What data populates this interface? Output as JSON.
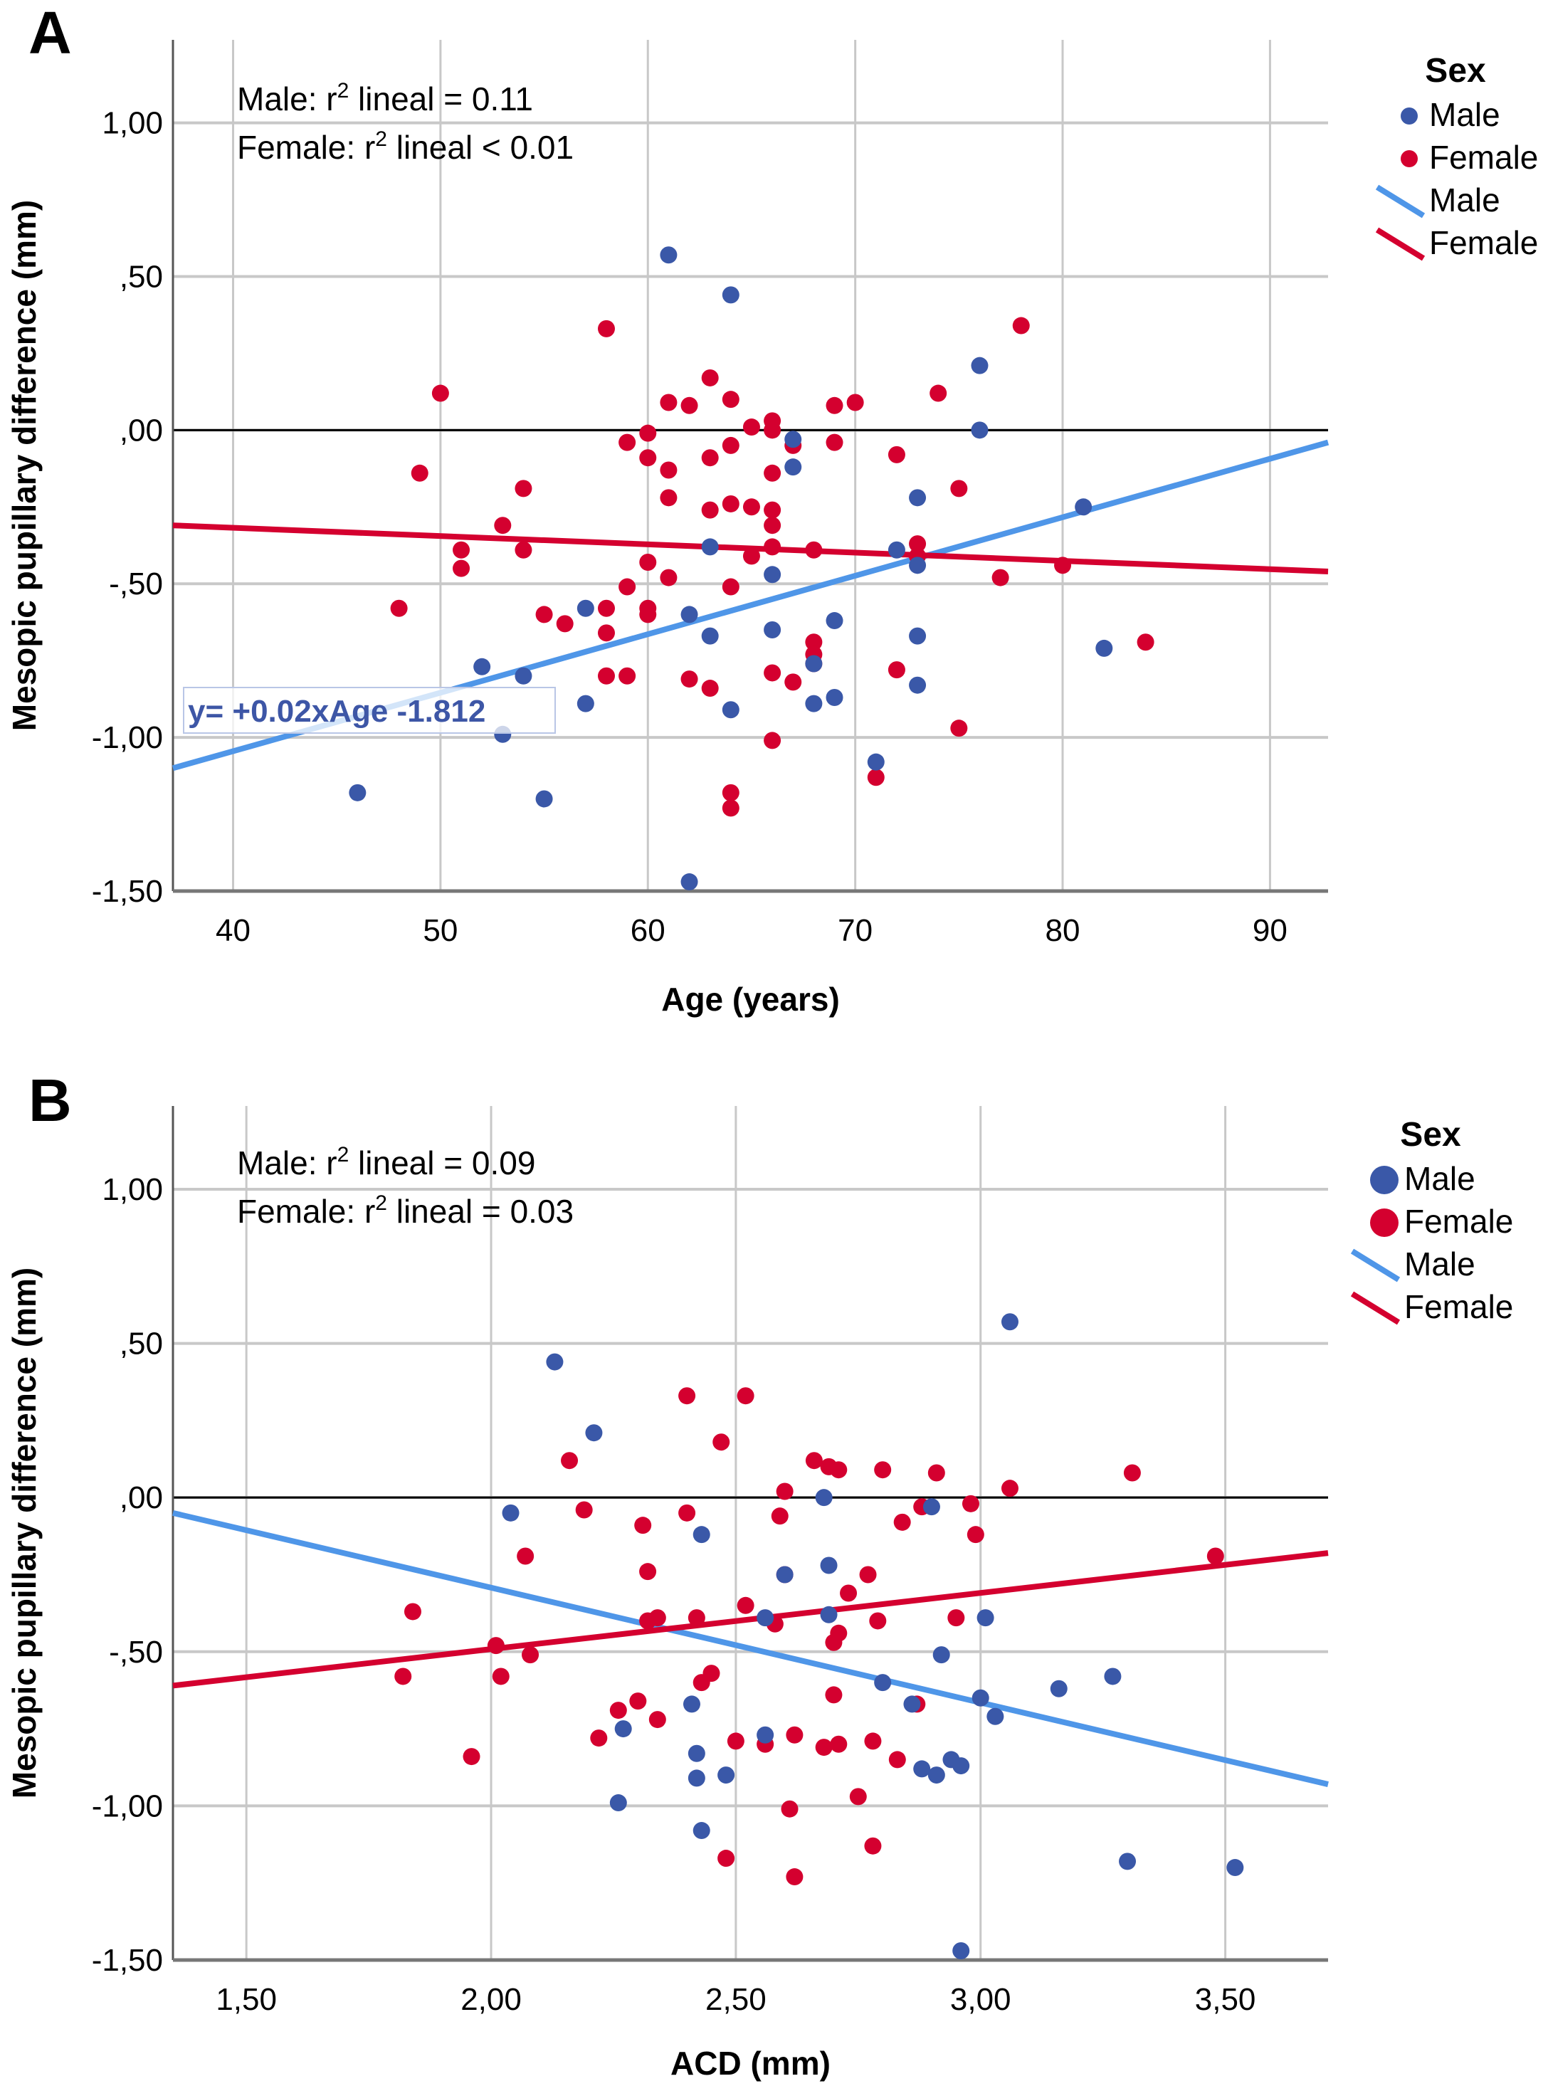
{
  "colors": {
    "male_point": "#3a58a8",
    "female_point": "#d4002f",
    "male_line": "#4f96e8",
    "female_line": "#d4002f",
    "grid": "#c8c8c8",
    "zero_line": "#000000"
  },
  "chart_data": [
    {
      "panel": "A",
      "type": "scatter",
      "title": "",
      "xlabel": "Age (years)",
      "ylabel": "Mesopic pupillary difference (mm)",
      "xlim": [
        37.1,
        92.8
      ],
      "ylim": [
        -1.5,
        1.27
      ],
      "x_ticks": [
        40,
        50,
        60,
        70,
        80,
        90
      ],
      "x_tick_labels": [
        "40",
        "50",
        "60",
        "70",
        "80",
        "90"
      ],
      "y_ticks": [
        1.0,
        0.5,
        0.0,
        -0.5,
        -1.0,
        -1.5
      ],
      "y_tick_labels": [
        "1,00",
        ",50",
        ",00",
        "-,50",
        "-1,00",
        "-1,50"
      ],
      "grid": true,
      "reference_line_y": 0,
      "annotations": [
        {
          "prefix": "Male: r",
          "sup": "2",
          "suffix": " lineal = 0.11"
        },
        {
          "prefix": "Female: r",
          "sup": "2",
          "suffix": " lineal < 0.01"
        }
      ],
      "equation_label": "y= +0.02xAge -1.812",
      "legend": {
        "title": "Sex",
        "position": "right",
        "entries": [
          {
            "label": "Male",
            "kind": "point",
            "series": "Male"
          },
          {
            "label": "Female",
            "kind": "point",
            "series": "Female"
          },
          {
            "label": "Male",
            "kind": "line",
            "series": "Male"
          },
          {
            "label": "Female",
            "kind": "line",
            "series": "Female"
          }
        ]
      },
      "series": [
        {
          "name": "Male",
          "points": [
            [
              46,
              -1.18
            ],
            [
              52,
              -0.77
            ],
            [
              53,
              -0.99
            ],
            [
              54,
              -0.8
            ],
            [
              55,
              -1.2
            ],
            [
              57,
              -0.58
            ],
            [
              57,
              -0.89
            ],
            [
              61,
              0.57
            ],
            [
              62,
              -0.6
            ],
            [
              62,
              -1.47
            ],
            [
              63,
              -0.38
            ],
            [
              63,
              -0.67
            ],
            [
              64,
              0.44
            ],
            [
              64,
              -0.91
            ],
            [
              66,
              -0.47
            ],
            [
              66,
              -0.65
            ],
            [
              67,
              -0.03
            ],
            [
              67,
              -0.12
            ],
            [
              68,
              -0.76
            ],
            [
              68,
              -0.89
            ],
            [
              69,
              -0.62
            ],
            [
              69,
              -0.87
            ],
            [
              71,
              -1.08
            ],
            [
              72,
              -0.39
            ],
            [
              73,
              -0.22
            ],
            [
              73,
              -0.44
            ],
            [
              73,
              -0.67
            ],
            [
              73,
              -0.83
            ],
            [
              76,
              0.21
            ],
            [
              76,
              0.0
            ],
            [
              81,
              -0.25
            ],
            [
              82,
              -0.71
            ]
          ],
          "fit_line": [
            [
              37.1,
              -1.1
            ],
            [
              92.8,
              -0.04
            ]
          ]
        },
        {
          "name": "Female",
          "points": [
            [
              48,
              -0.58
            ],
            [
              49,
              -0.14
            ],
            [
              50,
              0.12
            ],
            [
              51,
              -0.39
            ],
            [
              51,
              -0.45
            ],
            [
              53,
              -0.31
            ],
            [
              54,
              -0.19
            ],
            [
              54,
              -0.39
            ],
            [
              55,
              -0.6
            ],
            [
              56,
              -0.63
            ],
            [
              58,
              0.33
            ],
            [
              58,
              -0.58
            ],
            [
              58,
              -0.66
            ],
            [
              58,
              -0.8
            ],
            [
              59,
              -0.04
            ],
            [
              59,
              -0.51
            ],
            [
              59,
              -0.8
            ],
            [
              60,
              -0.01
            ],
            [
              60,
              -0.09
            ],
            [
              60,
              -0.43
            ],
            [
              60,
              -0.58
            ],
            [
              60,
              -0.6
            ],
            [
              61,
              0.09
            ],
            [
              61,
              -0.13
            ],
            [
              61,
              -0.22
            ],
            [
              61,
              -0.48
            ],
            [
              62,
              0.08
            ],
            [
              62,
              -0.81
            ],
            [
              63,
              0.17
            ],
            [
              63,
              -0.09
            ],
            [
              63,
              -0.26
            ],
            [
              63,
              -0.84
            ],
            [
              64,
              0.1
            ],
            [
              64,
              -0.05
            ],
            [
              64,
              -0.24
            ],
            [
              64,
              -0.51
            ],
            [
              64,
              -1.18
            ],
            [
              64,
              -1.23
            ],
            [
              65,
              0.01
            ],
            [
              65,
              -0.25
            ],
            [
              65,
              -0.41
            ],
            [
              66,
              0.03
            ],
            [
              66,
              0.0
            ],
            [
              66,
              -0.14
            ],
            [
              66,
              -0.26
            ],
            [
              66,
              -0.31
            ],
            [
              66,
              -0.38
            ],
            [
              66,
              -0.79
            ],
            [
              66,
              -1.01
            ],
            [
              67,
              -0.05
            ],
            [
              67,
              -0.82
            ],
            [
              68,
              -0.39
            ],
            [
              68,
              -0.69
            ],
            [
              68,
              -0.73
            ],
            [
              68,
              -0.76
            ],
            [
              69,
              0.08
            ],
            [
              69,
              -0.04
            ],
            [
              70,
              0.09
            ],
            [
              71,
              -1.13
            ],
            [
              72,
              -0.08
            ],
            [
              72,
              -0.78
            ],
            [
              73,
              -0.37
            ],
            [
              73,
              -0.41
            ],
            [
              74,
              0.12
            ],
            [
              75,
              -0.19
            ],
            [
              75,
              -0.97
            ],
            [
              77,
              -0.48
            ],
            [
              78,
              0.34
            ],
            [
              80,
              -0.44
            ],
            [
              84,
              -0.69
            ]
          ],
          "fit_line": [
            [
              37.1,
              -0.31
            ],
            [
              92.8,
              -0.46
            ]
          ]
        }
      ]
    },
    {
      "panel": "B",
      "type": "scatter",
      "title": "",
      "xlabel": "ACD (mm)",
      "ylabel": "Mesopic pupillary difference (mm)",
      "xlim": [
        1.35,
        3.71
      ],
      "ylim": [
        -1.5,
        1.27
      ],
      "x_ticks": [
        1.5,
        2.0,
        2.5,
        3.0,
        3.5
      ],
      "x_tick_labels": [
        "1,50",
        "2,00",
        "2,50",
        "3,00",
        "3,50"
      ],
      "y_ticks": [
        1.0,
        0.5,
        0.0,
        -0.5,
        -1.0,
        -1.5
      ],
      "y_tick_labels": [
        "1,00",
        ",50",
        ",00",
        "-,50",
        "-1,00",
        "-1,50"
      ],
      "grid": true,
      "reference_line_y": 0,
      "annotations": [
        {
          "prefix": "Male: r",
          "sup": "2",
          "suffix": " lineal = 0.09"
        },
        {
          "prefix": "Female: r",
          "sup": "2",
          "suffix": " lineal = 0.03"
        }
      ],
      "legend": {
        "title": "Sex",
        "position": "right",
        "entries": [
          {
            "label": "Male",
            "kind": "point",
            "series": "Male"
          },
          {
            "label": "Female",
            "kind": "point",
            "series": "Female"
          },
          {
            "label": "Male",
            "kind": "line",
            "series": "Male"
          },
          {
            "label": "Female",
            "kind": "line",
            "series": "Female"
          }
        ]
      },
      "series": [
        {
          "name": "Male",
          "points": [
            [
              2.04,
              -0.05
            ],
            [
              2.13,
              0.44
            ],
            [
              2.21,
              0.21
            ],
            [
              2.26,
              -0.99
            ],
            [
              2.27,
              -0.75
            ],
            [
              2.41,
              -0.67
            ],
            [
              2.42,
              -0.83
            ],
            [
              2.42,
              -0.91
            ],
            [
              2.43,
              -1.08
            ],
            [
              2.43,
              -0.12
            ],
            [
              2.48,
              -0.9
            ],
            [
              2.56,
              -0.77
            ],
            [
              2.56,
              -0.39
            ],
            [
              2.6,
              -0.25
            ],
            [
              2.68,
              0.0
            ],
            [
              2.69,
              -0.22
            ],
            [
              2.69,
              -0.38
            ],
            [
              2.8,
              -0.6
            ],
            [
              2.86,
              -0.67
            ],
            [
              2.88,
              -0.88
            ],
            [
              2.91,
              -0.9
            ],
            [
              2.92,
              -0.51
            ],
            [
              2.9,
              -0.03
            ],
            [
              2.94,
              -0.85
            ],
            [
              2.96,
              -0.87
            ],
            [
              2.96,
              -1.47
            ],
            [
              3.0,
              -0.65
            ],
            [
              3.01,
              -0.39
            ],
            [
              3.03,
              -0.71
            ],
            [
              3.06,
              0.57
            ],
            [
              3.16,
              -0.62
            ],
            [
              3.27,
              -0.58
            ],
            [
              3.3,
              -1.18
            ],
            [
              3.52,
              -1.2
            ]
          ],
          "fit_line": [
            [
              1.35,
              -0.05
            ],
            [
              3.71,
              -0.93
            ]
          ]
        },
        {
          "name": "Female",
          "points": [
            [
              1.82,
              -0.58
            ],
            [
              1.84,
              -0.37
            ],
            [
              1.96,
              -0.84
            ],
            [
              2.01,
              -0.48
            ],
            [
              2.02,
              -0.58
            ],
            [
              2.07,
              -0.19
            ],
            [
              2.08,
              -0.51
            ],
            [
              2.16,
              0.12
            ],
            [
              2.19,
              -0.04
            ],
            [
              2.22,
              -0.78
            ],
            [
              2.26,
              -0.69
            ],
            [
              2.3,
              -0.66
            ],
            [
              2.31,
              -0.09
            ],
            [
              2.32,
              -0.4
            ],
            [
              2.32,
              -0.24
            ],
            [
              2.34,
              -0.72
            ],
            [
              2.34,
              -0.39
            ],
            [
              2.4,
              0.33
            ],
            [
              2.4,
              -0.05
            ],
            [
              2.42,
              -0.39
            ],
            [
              2.43,
              -0.6
            ],
            [
              2.45,
              -0.57
            ],
            [
              2.47,
              0.18
            ],
            [
              2.48,
              -1.17
            ],
            [
              2.5,
              -0.79
            ],
            [
              2.52,
              0.33
            ],
            [
              2.52,
              -0.35
            ],
            [
              2.56,
              -0.8
            ],
            [
              2.58,
              -0.41
            ],
            [
              2.59,
              -0.06
            ],
            [
              2.6,
              0.02
            ],
            [
              2.6,
              -0.25
            ],
            [
              2.61,
              -1.01
            ],
            [
              2.62,
              -1.23
            ],
            [
              2.62,
              -0.77
            ],
            [
              2.66,
              0.12
            ],
            [
              2.68,
              -0.81
            ],
            [
              2.69,
              0.1
            ],
            [
              2.7,
              -0.47
            ],
            [
              2.71,
              0.09
            ],
            [
              2.7,
              -0.64
            ],
            [
              2.71,
              -0.44
            ],
            [
              2.73,
              -0.31
            ],
            [
              2.71,
              -0.8
            ],
            [
              2.75,
              -0.97
            ],
            [
              2.77,
              -0.25
            ],
            [
              2.79,
              -0.4
            ],
            [
              2.78,
              -1.13
            ],
            [
              2.8,
              0.09
            ],
            [
              2.78,
              -0.79
            ],
            [
              2.83,
              -0.85
            ],
            [
              2.84,
              -0.08
            ],
            [
              2.87,
              -0.67
            ],
            [
              2.88,
              -0.03
            ],
            [
              2.91,
              0.08
            ],
            [
              2.95,
              -0.39
            ],
            [
              2.98,
              -0.02
            ],
            [
              2.99,
              -0.12
            ],
            [
              3.06,
              0.03
            ],
            [
              3.31,
              0.08
            ],
            [
              3.48,
              -0.19
            ]
          ],
          "fit_line": [
            [
              1.35,
              -0.61
            ],
            [
              3.71,
              -0.18
            ]
          ]
        }
      ]
    }
  ]
}
